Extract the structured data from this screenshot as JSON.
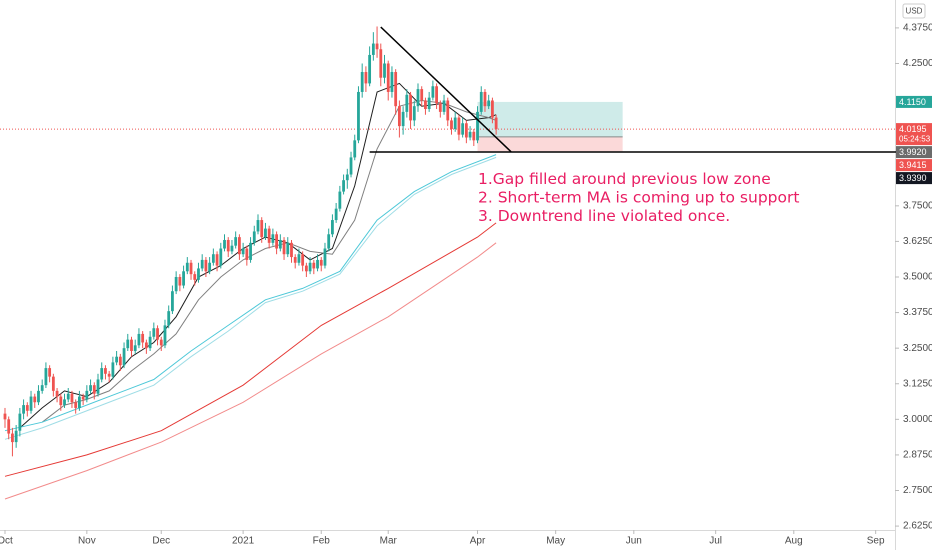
{
  "chart_data": {
    "type": "candlestick",
    "currency": "USD",
    "xlim": [
      -1.34,
      239.2
    ],
    "ylim": [
      2.541,
      4.473
    ],
    "xticks": [
      {
        "value": 0,
        "label": "Oct"
      },
      {
        "value": 22,
        "label": "Nov"
      },
      {
        "value": 42,
        "label": "Dec"
      },
      {
        "value": 64,
        "label": "2021"
      },
      {
        "value": 85,
        "label": "Feb"
      },
      {
        "value": 103,
        "label": "Mar"
      },
      {
        "value": 127,
        "label": "Apr"
      },
      {
        "value": 148,
        "label": "May"
      },
      {
        "value": 169,
        "label": "Jun"
      },
      {
        "value": 191,
        "label": "Jul"
      },
      {
        "value": 212,
        "label": "Aug"
      },
      {
        "value": 234,
        "label": "Sep"
      }
    ],
    "yticks": [
      {
        "value": 4.375,
        "label": "4.3750"
      },
      {
        "value": 4.25,
        "label": "4.2500"
      },
      {
        "value": 3.75,
        "label": "3.7500"
      },
      {
        "value": 3.625,
        "label": "3.6250"
      },
      {
        "value": 3.5,
        "label": "3.5000"
      },
      {
        "value": 3.375,
        "label": "3.3750"
      },
      {
        "value": 3.25,
        "label": "3.2500"
      },
      {
        "value": 3.125,
        "label": "3.1250"
      },
      {
        "value": 3.0,
        "label": "3.0000"
      },
      {
        "value": 2.875,
        "label": "2.8750"
      },
      {
        "value": 2.75,
        "label": "2.7500"
      },
      {
        "value": 2.625,
        "label": "2.6250"
      }
    ],
    "up_color": "#26a69a",
    "down_color": "#ef5350",
    "x": [
      0,
      1,
      2,
      3,
      4,
      5,
      6,
      7,
      8,
      9,
      10,
      11,
      12,
      13,
      14,
      15,
      16,
      17,
      18,
      19,
      20,
      21,
      22,
      23,
      24,
      25,
      26,
      27,
      28,
      29,
      30,
      31,
      32,
      33,
      34,
      35,
      36,
      37,
      38,
      39,
      40,
      41,
      42,
      43,
      44,
      45,
      46,
      47,
      48,
      49,
      50,
      51,
      52,
      53,
      54,
      55,
      56,
      57,
      58,
      59,
      60,
      61,
      62,
      63,
      64,
      65,
      66,
      67,
      68,
      69,
      70,
      71,
      72,
      73,
      74,
      75,
      76,
      77,
      78,
      79,
      80,
      81,
      82,
      83,
      84,
      85,
      86,
      87,
      88,
      89,
      90,
      91,
      92,
      93,
      94,
      95,
      96,
      97,
      98,
      99,
      100,
      101,
      102,
      103,
      104,
      105,
      106,
      107,
      108,
      109,
      110,
      111,
      112,
      113,
      114,
      115,
      116,
      117,
      118,
      119,
      120,
      121,
      122,
      123,
      124,
      125,
      126,
      127,
      128,
      129,
      130,
      131,
      132
    ],
    "ohlc": [
      [
        3.02,
        3.04,
        2.97,
        3.0
      ],
      [
        3.0,
        3.01,
        2.93,
        2.95
      ],
      [
        2.95,
        2.97,
        2.87,
        2.92
      ],
      [
        2.92,
        2.98,
        2.9,
        2.96
      ],
      [
        2.96,
        3.04,
        2.94,
        3.02
      ],
      [
        3.02,
        3.07,
        3.0,
        3.05
      ],
      [
        3.05,
        3.06,
        3.01,
        3.03
      ],
      [
        3.03,
        3.1,
        3.02,
        3.08
      ],
      [
        3.08,
        3.09,
        3.04,
        3.06
      ],
      [
        3.06,
        3.12,
        3.05,
        3.1
      ],
      [
        3.1,
        3.14,
        3.09,
        3.12
      ],
      [
        3.12,
        3.2,
        3.11,
        3.18
      ],
      [
        3.18,
        3.19,
        3.13,
        3.15
      ],
      [
        3.15,
        3.16,
        3.08,
        3.1
      ],
      [
        3.1,
        3.11,
        3.06,
        3.08
      ],
      [
        3.08,
        3.09,
        3.03,
        3.05
      ],
      [
        3.05,
        3.09,
        3.04,
        3.07
      ],
      [
        3.07,
        3.11,
        3.06,
        3.09
      ],
      [
        3.09,
        3.1,
        3.04,
        3.06
      ],
      [
        3.06,
        3.07,
        3.02,
        3.04
      ],
      [
        3.04,
        3.1,
        3.03,
        3.08
      ],
      [
        3.08,
        3.09,
        3.05,
        3.07
      ],
      [
        3.07,
        3.12,
        3.06,
        3.1
      ],
      [
        3.1,
        3.14,
        3.09,
        3.12
      ],
      [
        3.12,
        3.13,
        3.07,
        3.09
      ],
      [
        3.09,
        3.16,
        3.08,
        3.14
      ],
      [
        3.14,
        3.2,
        3.13,
        3.18
      ],
      [
        3.18,
        3.19,
        3.14,
        3.16
      ],
      [
        3.16,
        3.17,
        3.13,
        3.15
      ],
      [
        3.15,
        3.22,
        3.14,
        3.2
      ],
      [
        3.2,
        3.24,
        3.19,
        3.22
      ],
      [
        3.22,
        3.23,
        3.17,
        3.19
      ],
      [
        3.19,
        3.27,
        3.18,
        3.25
      ],
      [
        3.25,
        3.3,
        3.24,
        3.28
      ],
      [
        3.28,
        3.29,
        3.22,
        3.24
      ],
      [
        3.24,
        3.28,
        3.23,
        3.26
      ],
      [
        3.26,
        3.32,
        3.25,
        3.3
      ],
      [
        3.3,
        3.31,
        3.25,
        3.27
      ],
      [
        3.27,
        3.28,
        3.23,
        3.25
      ],
      [
        3.25,
        3.31,
        3.24,
        3.29
      ],
      [
        3.29,
        3.34,
        3.28,
        3.32
      ],
      [
        3.32,
        3.33,
        3.26,
        3.28
      ],
      [
        3.28,
        3.29,
        3.24,
        3.26
      ],
      [
        3.26,
        3.35,
        3.25,
        3.33
      ],
      [
        3.33,
        3.4,
        3.32,
        3.38
      ],
      [
        3.38,
        3.47,
        3.37,
        3.45
      ],
      [
        3.45,
        3.52,
        3.44,
        3.5
      ],
      [
        3.5,
        3.51,
        3.45,
        3.47
      ],
      [
        3.47,
        3.54,
        3.46,
        3.52
      ],
      [
        3.52,
        3.57,
        3.51,
        3.55
      ],
      [
        3.55,
        3.56,
        3.49,
        3.51
      ],
      [
        3.51,
        3.52,
        3.47,
        3.49
      ],
      [
        3.49,
        3.55,
        3.48,
        3.53
      ],
      [
        3.53,
        3.58,
        3.52,
        3.56
      ],
      [
        3.56,
        3.57,
        3.5,
        3.52
      ],
      [
        3.52,
        3.57,
        3.51,
        3.55
      ],
      [
        3.55,
        3.6,
        3.54,
        3.58
      ],
      [
        3.58,
        3.59,
        3.52,
        3.54
      ],
      [
        3.54,
        3.62,
        3.53,
        3.6
      ],
      [
        3.6,
        3.65,
        3.59,
        3.63
      ],
      [
        3.63,
        3.64,
        3.57,
        3.59
      ],
      [
        3.59,
        3.63,
        3.58,
        3.61
      ],
      [
        3.61,
        3.66,
        3.6,
        3.64
      ],
      [
        3.64,
        3.65,
        3.56,
        3.58
      ],
      [
        3.58,
        3.62,
        3.57,
        3.6
      ],
      [
        3.6,
        3.61,
        3.54,
        3.56
      ],
      [
        3.56,
        3.64,
        3.55,
        3.62
      ],
      [
        3.62,
        3.68,
        3.61,
        3.66
      ],
      [
        3.66,
        3.72,
        3.65,
        3.7
      ],
      [
        3.7,
        3.71,
        3.62,
        3.64
      ],
      [
        3.64,
        3.69,
        3.63,
        3.67
      ],
      [
        3.67,
        3.68,
        3.6,
        3.62
      ],
      [
        3.62,
        3.67,
        3.61,
        3.65
      ],
      [
        3.65,
        3.66,
        3.58,
        3.6
      ],
      [
        3.6,
        3.65,
        3.59,
        3.63
      ],
      [
        3.63,
        3.64,
        3.56,
        3.58
      ],
      [
        3.58,
        3.64,
        3.57,
        3.62
      ],
      [
        3.62,
        3.63,
        3.55,
        3.57
      ],
      [
        3.57,
        3.58,
        3.53,
        3.55
      ],
      [
        3.55,
        3.6,
        3.54,
        3.58
      ],
      [
        3.58,
        3.59,
        3.52,
        3.54
      ],
      [
        3.54,
        3.55,
        3.5,
        3.52
      ],
      [
        3.52,
        3.57,
        3.51,
        3.55
      ],
      [
        3.55,
        3.56,
        3.51,
        3.53
      ],
      [
        3.53,
        3.58,
        3.52,
        3.56
      ],
      [
        3.56,
        3.57,
        3.52,
        3.54
      ],
      [
        3.54,
        3.62,
        3.53,
        3.6
      ],
      [
        3.6,
        3.67,
        3.59,
        3.65
      ],
      [
        3.65,
        3.72,
        3.64,
        3.7
      ],
      [
        3.7,
        3.76,
        3.69,
        3.74
      ],
      [
        3.74,
        3.82,
        3.73,
        3.8
      ],
      [
        3.8,
        3.86,
        3.79,
        3.84
      ],
      [
        3.84,
        3.88,
        3.81,
        3.86
      ],
      [
        3.86,
        3.94,
        3.85,
        3.92
      ],
      [
        3.92,
        4.0,
        3.91,
        3.98
      ],
      [
        3.98,
        4.17,
        3.97,
        4.15
      ],
      [
        4.15,
        4.25,
        4.13,
        4.22
      ],
      [
        4.22,
        4.24,
        4.15,
        4.18
      ],
      [
        4.18,
        4.31,
        4.17,
        4.28
      ],
      [
        4.28,
        4.36,
        4.26,
        4.32
      ],
      [
        4.32,
        4.38,
        4.27,
        4.3
      ],
      [
        4.3,
        4.32,
        4.17,
        4.2
      ],
      [
        4.2,
        4.28,
        4.18,
        4.25
      ],
      [
        4.25,
        4.26,
        4.12,
        4.15
      ],
      [
        4.15,
        4.24,
        4.13,
        4.22
      ],
      [
        4.22,
        4.23,
        4.07,
        4.1
      ],
      [
        4.1,
        4.12,
        3.99,
        4.03
      ],
      [
        4.03,
        4.1,
        4.0,
        4.08
      ],
      [
        4.08,
        4.16,
        4.06,
        4.14
      ],
      [
        4.14,
        4.15,
        4.02,
        4.05
      ],
      [
        4.05,
        4.12,
        4.03,
        4.1
      ],
      [
        4.1,
        4.18,
        4.08,
        4.16
      ],
      [
        4.16,
        4.17,
        4.1,
        4.12
      ],
      [
        4.12,
        4.13,
        4.07,
        4.09
      ],
      [
        4.09,
        4.15,
        4.08,
        4.13
      ],
      [
        4.13,
        4.19,
        4.12,
        4.17
      ],
      [
        4.17,
        4.18,
        4.09,
        4.11
      ],
      [
        4.11,
        4.12,
        4.06,
        4.08
      ],
      [
        4.08,
        4.14,
        4.07,
        4.12
      ],
      [
        4.12,
        4.13,
        4.03,
        4.05
      ],
      [
        4.05,
        4.06,
        4.0,
        4.02
      ],
      [
        4.02,
        4.08,
        4.01,
        4.06
      ],
      [
        4.06,
        4.07,
        3.98,
        4.0
      ],
      [
        4.0,
        4.06,
        3.99,
        4.04
      ],
      [
        4.04,
        4.05,
        3.97,
        3.99
      ],
      [
        3.99,
        4.03,
        3.98,
        4.01
      ],
      [
        4.01,
        4.02,
        3.96,
        3.98
      ],
      [
        3.98,
        4.1,
        3.97,
        4.08
      ],
      [
        4.08,
        4.17,
        4.07,
        4.15
      ],
      [
        4.15,
        4.16,
        4.08,
        4.1
      ],
      [
        4.1,
        4.14,
        4.09,
        4.12
      ],
      [
        4.12,
        4.13,
        4.04,
        4.06
      ],
      [
        4.06,
        4.07,
        4.0,
        4.0195
      ]
    ],
    "moving_averages": [
      {
        "color": "#1f1f1f",
        "x": [
          4,
          10,
          16,
          22,
          28,
          34,
          40,
          46,
          52,
          58,
          64,
          70,
          76,
          82,
          88,
          94,
          100,
          106,
          112,
          118,
          124,
          130,
          132
        ],
        "values": [
          2.97,
          3.04,
          3.1,
          3.08,
          3.13,
          3.22,
          3.27,
          3.36,
          3.5,
          3.54,
          3.6,
          3.64,
          3.62,
          3.56,
          3.6,
          3.82,
          4.15,
          4.18,
          4.1,
          4.11,
          4.05,
          4.06,
          4.07
        ]
      },
      {
        "color": "#808080",
        "x": [
          10,
          16,
          22,
          28,
          34,
          40,
          46,
          52,
          58,
          64,
          70,
          76,
          82,
          88,
          94,
          100,
          106,
          112,
          118,
          124,
          130,
          132
        ],
        "values": [
          2.99,
          3.05,
          3.07,
          3.1,
          3.17,
          3.23,
          3.3,
          3.42,
          3.5,
          3.56,
          3.6,
          3.62,
          3.59,
          3.58,
          3.7,
          3.95,
          4.1,
          4.12,
          4.11,
          4.08,
          4.06,
          4.05
        ]
      },
      {
        "color": "#4dc8d8",
        "x": [
          0,
          10,
          20,
          30,
          40,
          50,
          60,
          70,
          80,
          90,
          100,
          110,
          120,
          132
        ],
        "values": [
          2.96,
          2.99,
          3.04,
          3.09,
          3.14,
          3.24,
          3.33,
          3.42,
          3.46,
          3.52,
          3.7,
          3.8,
          3.87,
          3.93
        ]
      },
      {
        "color": "#9fdde6",
        "x": [
          0,
          10,
          20,
          30,
          40,
          50,
          60,
          70,
          80,
          90,
          100,
          110,
          120,
          132
        ],
        "values": [
          2.93,
          2.97,
          3.02,
          3.07,
          3.12,
          3.22,
          3.31,
          3.41,
          3.45,
          3.51,
          3.68,
          3.79,
          3.86,
          3.92
        ]
      },
      {
        "color": "#e53935",
        "x": [
          0,
          22,
          42,
          64,
          85,
          103,
          127,
          132
        ],
        "values": [
          2.8,
          2.875,
          2.96,
          3.12,
          3.33,
          3.46,
          3.64,
          3.69
        ]
      },
      {
        "color": "#f28b8b",
        "x": [
          0,
          22,
          42,
          64,
          85,
          103,
          127,
          132
        ],
        "values": [
          2.72,
          2.82,
          2.92,
          3.06,
          3.23,
          3.36,
          3.57,
          3.62
        ]
      }
    ],
    "trendline": {
      "x": [
        101,
        136
      ],
      "values": [
        4.378,
        3.94
      ]
    },
    "support_line": {
      "x": 98,
      "value": 3.939
    },
    "position": {
      "x": [
        127,
        166
      ],
      "target": 4.115,
      "entry": 3.992,
      "stop": 3.9415
    },
    "price_labels": [
      {
        "value": 4.115,
        "label": "4.1150",
        "color": "#26a69a"
      },
      {
        "value": 4.0195,
        "label": "4.0195",
        "color": "#ef5350",
        "countdown": "05:24:53"
      },
      {
        "value": 3.992,
        "label": "3.9920",
        "color": "#6b6b6b"
      },
      {
        "value": 3.9415,
        "label": "3.9415",
        "color": "#ef5350"
      },
      {
        "value": 3.939,
        "label": "3.9390",
        "color": "#131722"
      }
    ],
    "annotations": [
      "1.Gap filled around previous low zone",
      "2. Short-term MA is coming up to support",
      "3. Downtrend line violated once."
    ]
  }
}
